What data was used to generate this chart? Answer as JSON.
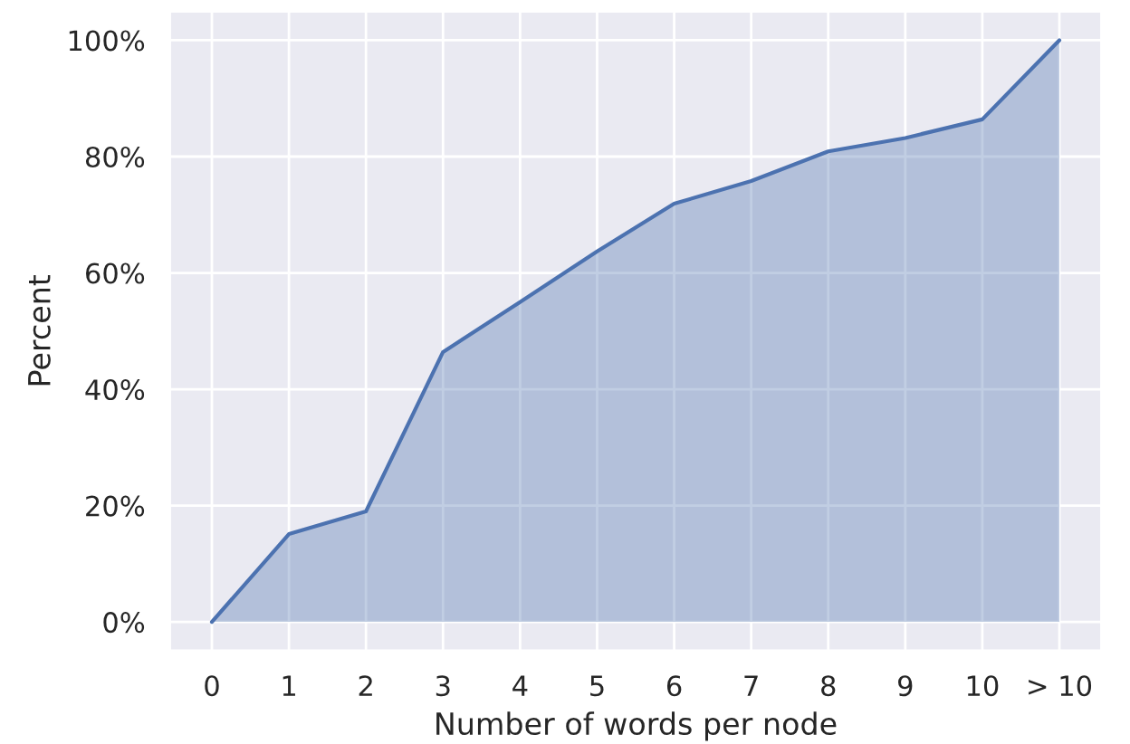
{
  "chart_data": {
    "type": "area",
    "xlabel": "Number of words per node",
    "ylabel": "Percent",
    "categories": [
      "0",
      "1",
      "2",
      "3",
      "4",
      "5",
      "6",
      "7",
      "8",
      "9",
      "10",
      "> 10"
    ],
    "series": [
      {
        "color": "#4c72b0",
        "values": [
          0,
          15.1,
          19.0,
          46.4,
          55.0,
          63.7,
          71.9,
          75.8,
          80.9,
          83.2,
          86.4,
          100
        ]
      }
    ],
    "ylim": [
      -5,
      105
    ],
    "yticks": [
      {
        "value": 0,
        "label": "0%"
      },
      {
        "value": 20,
        "label": "20%"
      },
      {
        "value": 40,
        "label": "40%"
      },
      {
        "value": 60,
        "label": "60%"
      },
      {
        "value": 80,
        "label": "80%"
      },
      {
        "value": 100,
        "label": "100%"
      }
    ],
    "grid": true
  }
}
